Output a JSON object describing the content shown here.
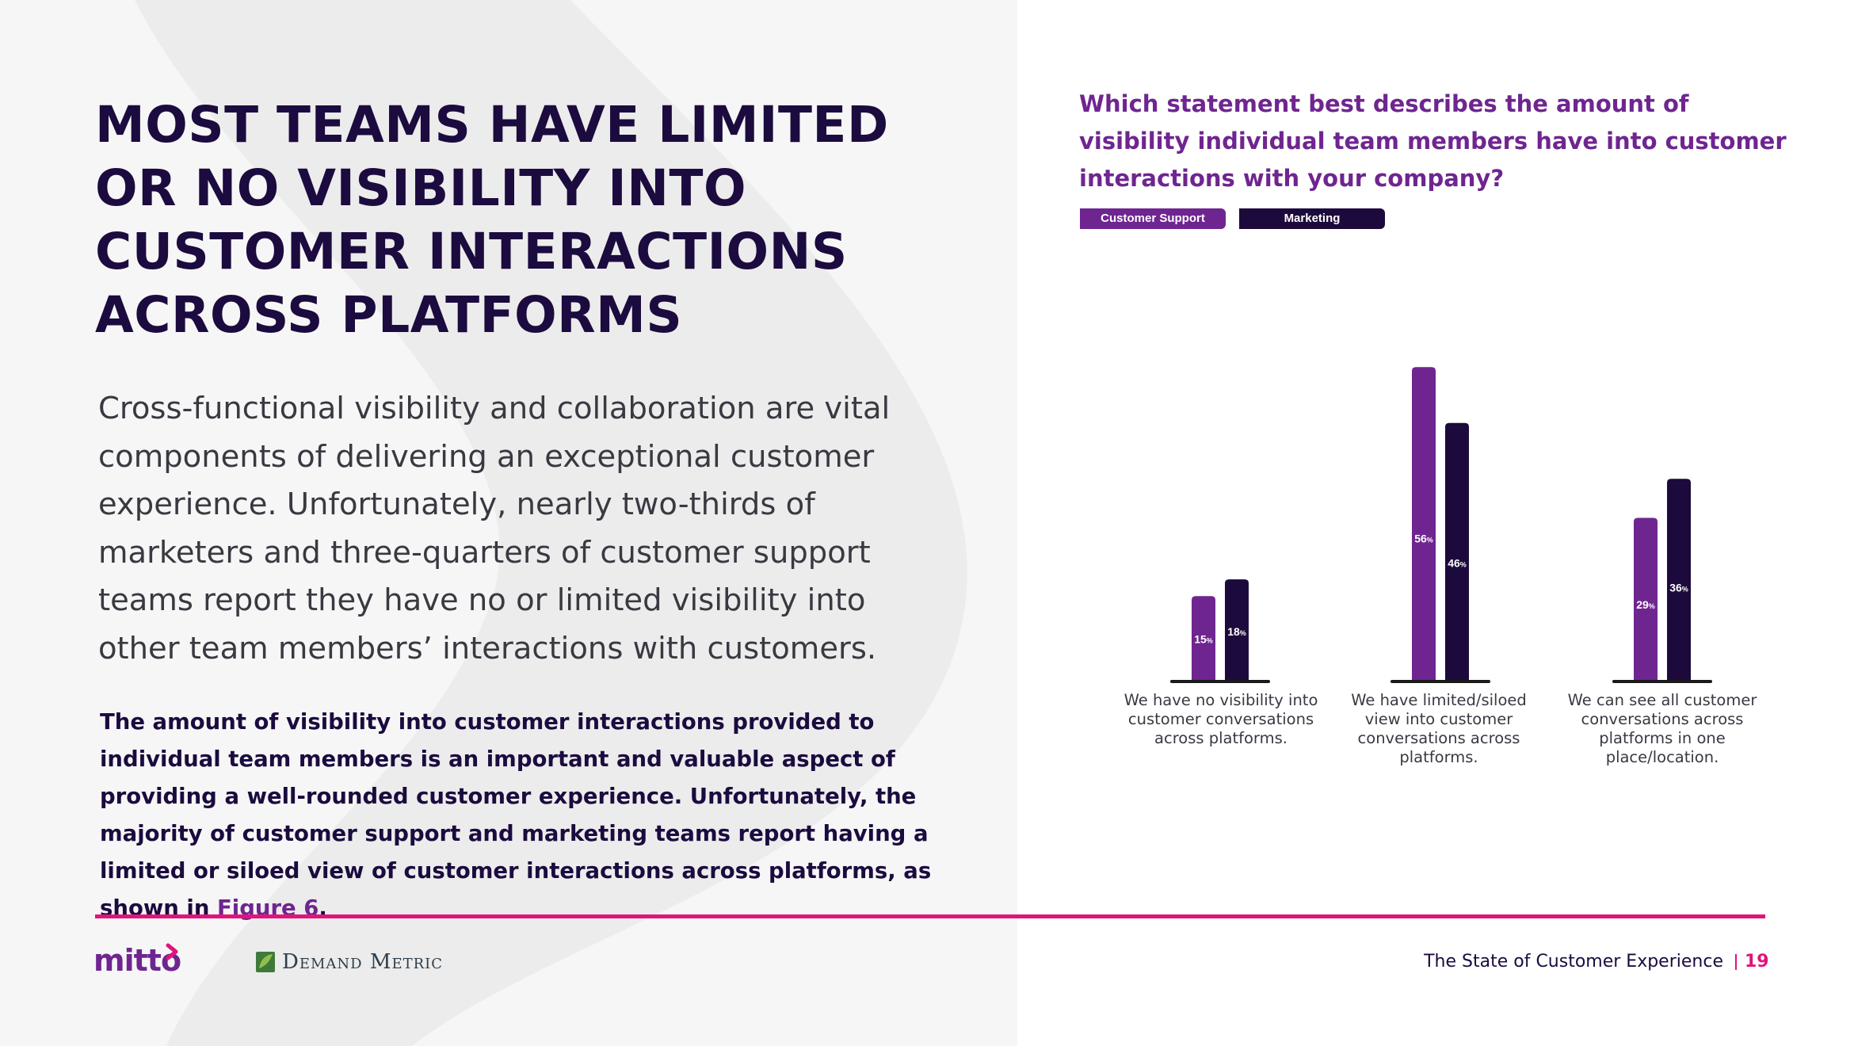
{
  "headline": "MOST TEAMS HAVE LIMITED OR NO VISIBILITY INTO CUSTOMER INTERACTIONS ACROSS PLATFORMS",
  "intro": "Cross-functional visibility and collaboration are vital components of delivering an exceptional customer experience. Unfortunately, nearly two-thirds of marketers and three-quarters of customer support teams report they have no or limited visibility into other team members’ interactions with customers.",
  "detail": {
    "text": "The amount of visibility into customer interactions provided to individual team members is an important and valuable aspect of providing a well-rounded customer experience. Unfortunately, the majority of customer support and marketing teams report having a limited or siloed view of customer interactions across platforms, as shown in ",
    "link": "Figure 6",
    "end": "."
  },
  "footer": {
    "logo_mitto": "mitto",
    "logo_demand_metric": "Demand Metric",
    "title": "The State of Customer Experience",
    "page": "19"
  },
  "colors": {
    "customer_support": "#6f2590",
    "marketing": "#1d0a3c",
    "accent": "#e0147c",
    "heading": "#1b0b3f"
  },
  "chart_data": {
    "type": "bar",
    "title": "Which statement best describes the amount of visibility individual team members have into customer interactions with your company?",
    "categories": [
      "We have no visibility into customer conversations across platforms.",
      "We have limited/siloed view into customer conversations across platforms.",
      "We can see all customer conversations across platforms in one place/location."
    ],
    "series": [
      {
        "name": "Customer Support",
        "values": [
          15,
          56,
          29
        ]
      },
      {
        "name": "Marketing",
        "values": [
          18,
          46,
          36
        ]
      }
    ],
    "value_suffix": "%",
    "legend_position": "top-left",
    "grid": false
  }
}
